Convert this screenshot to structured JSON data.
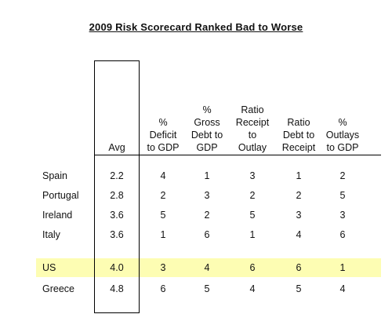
{
  "title": "2009 Risk Scorecard Ranked Bad to Worse",
  "colors": {
    "highlight": "#fdfdb3",
    "border": "#000000",
    "rule": "#000000"
  },
  "headers": [
    [
      "Avg"
    ],
    [
      "%",
      "Deficit",
      "to GDP"
    ],
    [
      "%",
      "Gross",
      "Debt to",
      "GDP"
    ],
    [
      "Ratio",
      "Receipt",
      "to",
      "Outlay"
    ],
    [
      "Ratio",
      "Debt to",
      "Receipt"
    ],
    [
      "%",
      "Outlays",
      "to GDP"
    ]
  ],
  "rows": [
    {
      "country": "Spain",
      "avg": "2.2",
      "vals": [
        "4",
        "1",
        "3",
        "1",
        "2"
      ]
    },
    {
      "country": "Portugal",
      "avg": "2.8",
      "vals": [
        "2",
        "3",
        "2",
        "2",
        "5"
      ]
    },
    {
      "country": "Ireland",
      "avg": "3.6",
      "vals": [
        "5",
        "2",
        "5",
        "3",
        "3"
      ]
    },
    {
      "country": "Italy",
      "avg": "3.6",
      "vals": [
        "1",
        "6",
        "1",
        "4",
        "6"
      ]
    },
    {
      "country": "US",
      "avg": "4.0",
      "vals": [
        "3",
        "4",
        "6",
        "6",
        "1"
      ],
      "highlighted": true
    },
    {
      "country": "Greece",
      "avg": "4.8",
      "vals": [
        "6",
        "5",
        "4",
        "5",
        "4"
      ]
    }
  ]
}
